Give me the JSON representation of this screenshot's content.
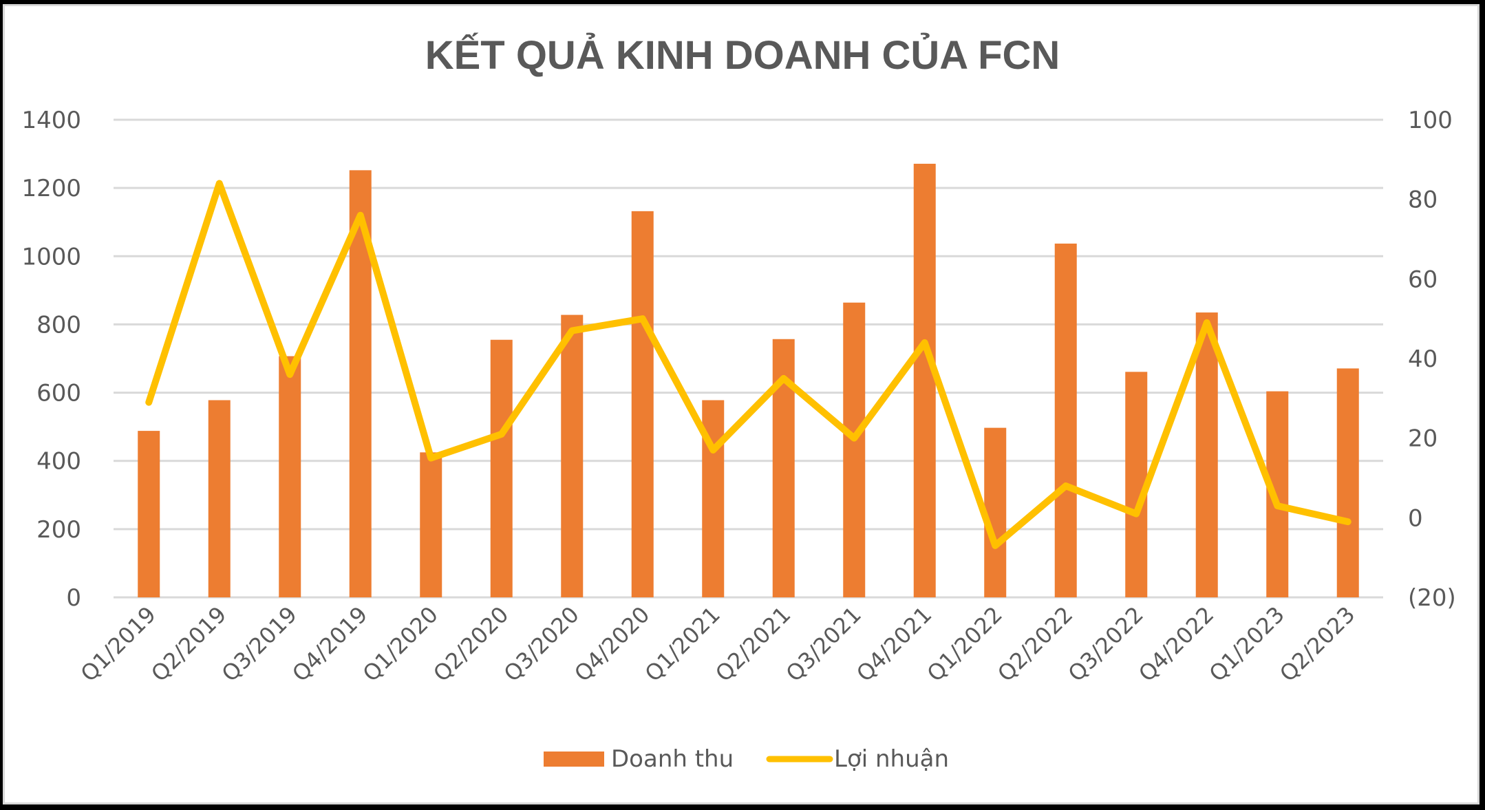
{
  "chart_data": {
    "type": "bar+line",
    "title": "KẾT QUẢ KINH DOANH CỦA FCN",
    "categories": [
      "Q1/2019",
      "Q2/2019",
      "Q3/2019",
      "Q4/2019",
      "Q1/2020",
      "Q2/2020",
      "Q3/2020",
      "Q4/2020",
      "Q1/2021",
      "Q2/2021",
      "Q3/2021",
      "Q4/2021",
      "Q1/2022",
      "Q2/2022",
      "Q3/2022",
      "Q4/2022",
      "Q1/2023",
      "Q2/2023"
    ],
    "series": [
      {
        "name": "Doanh thu",
        "type": "bar",
        "axis": "left",
        "color": "#ED7D31",
        "values": [
          488,
          578,
          707,
          1252,
          425,
          755,
          828,
          1132,
          578,
          757,
          864,
          1271,
          497,
          1037,
          661,
          835,
          604,
          671
        ]
      },
      {
        "name": "Lợi nhuận",
        "type": "line",
        "axis": "right",
        "color": "#FFC000",
        "values": [
          29,
          84,
          36,
          76,
          15,
          21,
          47,
          50,
          17,
          35,
          20,
          44,
          -7,
          8,
          1,
          49,
          3,
          -1
        ]
      }
    ],
    "left_axis": {
      "ylim": [
        0,
        1400
      ],
      "ticks": [
        "1400",
        "1200",
        "1000",
        "800",
        "600",
        "400",
        "200",
        "0"
      ]
    },
    "right_axis": {
      "ylim": [
        -20,
        100
      ],
      "ticks": [
        "100",
        "80",
        "60",
        "40",
        "20",
        "0",
        "(20)"
      ]
    },
    "xlabel": "",
    "ylabel": "",
    "grid": true,
    "legend_position": "bottom"
  },
  "legend": {
    "bar_label": "Doanh thu",
    "line_label": "Lợi nhuận"
  }
}
